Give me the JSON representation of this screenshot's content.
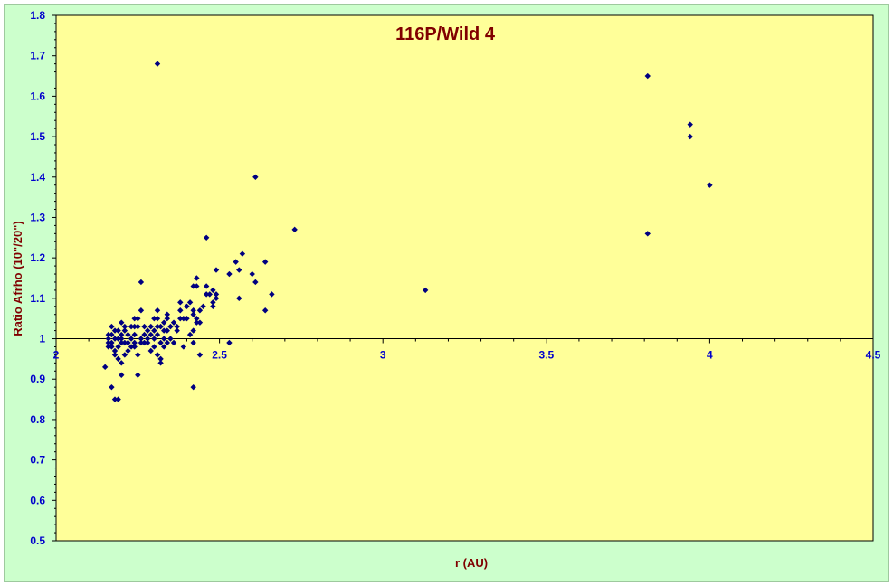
{
  "chart_data": {
    "type": "scatter",
    "title": "116P/Wild 4",
    "xlabel": "r (AU)",
    "ylabel": "Ratio Afrho (10\"/20\")",
    "xlim": [
      2,
      4.5
    ],
    "ylim": [
      0.5,
      1.8
    ],
    "x_ticks": [
      "2",
      "2.5",
      "3",
      "3.5",
      "4",
      "4.5"
    ],
    "y_ticks": [
      "0.5",
      "0.6",
      "0.7",
      "0.8",
      "0.9",
      "1",
      "1.1",
      "1.2",
      "1.3",
      "1.4",
      "1.5",
      "1.6",
      "1.7",
      "1.8"
    ],
    "grid": false,
    "legend": "none",
    "colors": {
      "plot_bg": "#ffff99",
      "chart_bg": "#ccffcc",
      "marker": "#000080",
      "title": "#800000",
      "tick": "#0000cc"
    },
    "points": [
      [
        2.31,
        1.68
      ],
      [
        2.61,
        1.4
      ],
      [
        2.73,
        1.27
      ],
      [
        3.13,
        1.12
      ],
      [
        3.81,
        1.65
      ],
      [
        3.81,
        1.26
      ],
      [
        3.94,
        1.53
      ],
      [
        3.94,
        1.5
      ],
      [
        4.0,
        1.38
      ],
      [
        2.46,
        1.25
      ],
      [
        2.57,
        1.21
      ],
      [
        2.55,
        1.19
      ],
      [
        2.64,
        1.19
      ],
      [
        2.56,
        1.17
      ],
      [
        2.49,
        1.17
      ],
      [
        2.53,
        1.16
      ],
      [
        2.6,
        1.16
      ],
      [
        2.66,
        1.11
      ],
      [
        2.61,
        1.14
      ],
      [
        2.56,
        1.1
      ],
      [
        2.64,
        1.07
      ],
      [
        2.53,
        0.99
      ],
      [
        2.26,
        1.14
      ],
      [
        2.43,
        1.15
      ],
      [
        2.43,
        1.13
      ],
      [
        2.46,
        1.13
      ],
      [
        2.48,
        1.12
      ],
      [
        2.47,
        1.11
      ],
      [
        2.49,
        1.11
      ],
      [
        2.49,
        1.1
      ],
      [
        2.46,
        1.11
      ],
      [
        2.48,
        1.09
      ],
      [
        2.45,
        1.08
      ],
      [
        2.48,
        1.08
      ],
      [
        2.44,
        1.07
      ],
      [
        2.43,
        1.05
      ],
      [
        2.44,
        1.04
      ],
      [
        2.42,
        1.13
      ],
      [
        2.41,
        1.09
      ],
      [
        2.4,
        1.08
      ],
      [
        2.42,
        1.07
      ],
      [
        2.42,
        1.06
      ],
      [
        2.4,
        1.05
      ],
      [
        2.43,
        1.04
      ],
      [
        2.42,
        1.02
      ],
      [
        2.41,
        1.01
      ],
      [
        2.42,
        0.99
      ],
      [
        2.39,
        0.98
      ],
      [
        2.44,
        0.96
      ],
      [
        2.42,
        0.88
      ],
      [
        2.38,
        1.09
      ],
      [
        2.39,
        1.05
      ],
      [
        2.36,
        1.04
      ],
      [
        2.37,
        1.02
      ],
      [
        2.35,
        1.03
      ],
      [
        2.34,
        1.06
      ],
      [
        2.33,
        1.04
      ],
      [
        2.34,
        1.02
      ],
      [
        2.33,
        1.0
      ],
      [
        2.31,
        1.07
      ],
      [
        2.31,
        1.05
      ],
      [
        2.32,
        1.03
      ],
      [
        2.31,
        1.01
      ],
      [
        2.32,
        0.99
      ],
      [
        2.3,
        0.98
      ],
      [
        2.31,
        0.96
      ],
      [
        2.32,
        0.95
      ],
      [
        2.32,
        0.94
      ],
      [
        2.29,
        1.03
      ],
      [
        2.3,
        1.0
      ],
      [
        2.28,
        0.99
      ],
      [
        2.29,
        0.97
      ],
      [
        2.28,
        1.02
      ],
      [
        2.27,
        1.01
      ],
      [
        2.26,
        1.0
      ],
      [
        2.26,
        0.99
      ],
      [
        2.25,
        0.96
      ],
      [
        2.26,
        1.07
      ],
      [
        2.25,
        1.05
      ],
      [
        2.24,
        1.03
      ],
      [
        2.24,
        1.01
      ],
      [
        2.24,
        0.98
      ],
      [
        2.23,
        1.0
      ],
      [
        2.22,
        0.99
      ],
      [
        2.22,
        0.97
      ],
      [
        2.21,
        1.03
      ],
      [
        2.21,
        1.02
      ],
      [
        2.2,
        1.01
      ],
      [
        2.2,
        0.99
      ],
      [
        2.21,
        0.96
      ],
      [
        2.2,
        0.94
      ],
      [
        2.2,
        1.04
      ],
      [
        2.19,
        1.0
      ],
      [
        2.19,
        0.98
      ],
      [
        2.19,
        0.95
      ],
      [
        2.2,
        0.91
      ],
      [
        2.18,
        1.02
      ],
      [
        2.18,
        1.0
      ],
      [
        2.18,
        0.97
      ],
      [
        2.17,
        1.01
      ],
      [
        2.17,
        0.99
      ],
      [
        2.17,
        0.98
      ],
      [
        2.18,
        0.85
      ],
      [
        2.19,
        0.85
      ],
      [
        2.17,
        0.88
      ],
      [
        2.16,
        1.0
      ],
      [
        2.16,
        0.99
      ],
      [
        2.15,
        0.93
      ],
      [
        2.25,
        0.91
      ],
      [
        2.35,
        1.0
      ],
      [
        2.36,
        0.99
      ],
      [
        2.34,
        0.99
      ],
      [
        2.37,
        1.03
      ],
      [
        2.27,
        1.03
      ],
      [
        2.23,
        1.03
      ],
      [
        2.24,
        1.05
      ],
      [
        2.38,
        1.05
      ],
      [
        2.38,
        1.07
      ],
      [
        2.3,
        1.02
      ],
      [
        2.31,
        1.03
      ],
      [
        2.33,
        0.98
      ],
      [
        2.28,
        1.0
      ],
      [
        2.22,
        1.01
      ],
      [
        2.17,
        1.03
      ],
      [
        2.16,
        1.01
      ],
      [
        2.16,
        0.98
      ],
      [
        2.2,
        1.0
      ],
      [
        2.24,
        0.99
      ],
      [
        2.25,
        1.03
      ],
      [
        2.33,
        1.02
      ],
      [
        2.34,
        1.05
      ],
      [
        2.3,
        1.05
      ],
      [
        2.29,
        1.01
      ],
      [
        2.27,
        0.99
      ],
      [
        2.23,
        0.98
      ],
      [
        2.21,
        0.99
      ],
      [
        2.19,
        1.02
      ],
      [
        2.18,
        0.96
      ]
    ]
  }
}
